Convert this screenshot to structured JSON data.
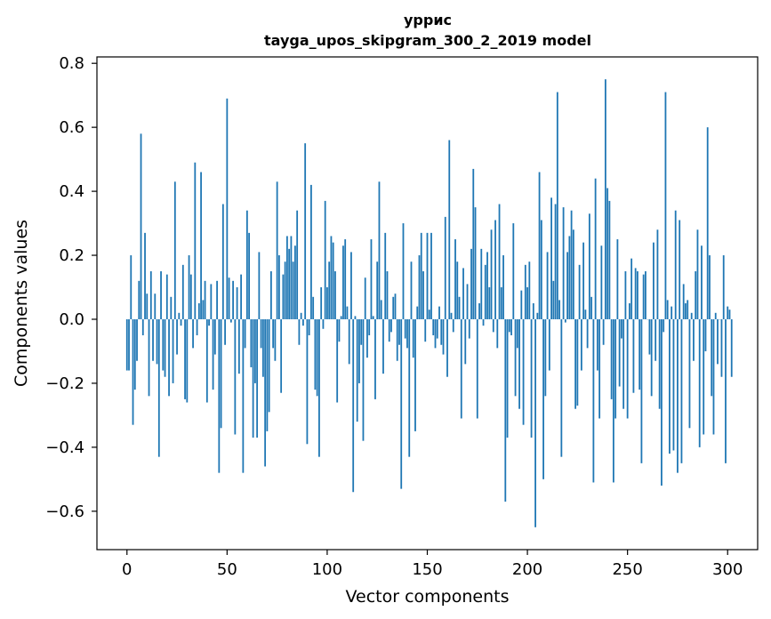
{
  "chart_data": {
    "type": "bar",
    "title": "уррис",
    "subtitle": "tayga_upos_skipgram_300_2_2019 model",
    "xlabel": "Vector components",
    "ylabel": "Components values",
    "xlim": [
      -15,
      315
    ],
    "ylim": [
      -0.72,
      0.82
    ],
    "x_ticks": [
      0,
      50,
      100,
      150,
      200,
      250,
      300
    ],
    "x_tick_labels": [
      "0",
      "50",
      "100",
      "150",
      "200",
      "250",
      "300"
    ],
    "y_ticks": [
      -0.6,
      -0.4,
      -0.2,
      0.0,
      0.2,
      0.4,
      0.6,
      0.8
    ],
    "y_tick_labels": [
      "−0.6",
      "−0.4",
      "−0.2",
      "0.0",
      "0.2",
      "0.4",
      "0.6",
      "0.8"
    ],
    "bar_color": "#1f77b4",
    "series": [
      {
        "name": "components",
        "values": [
          -0.16,
          -0.16,
          0.2,
          -0.33,
          -0.22,
          -0.13,
          0.12,
          0.58,
          -0.05,
          0.27,
          0.08,
          -0.24,
          0.15,
          -0.13,
          0.08,
          -0.14,
          -0.43,
          0.15,
          -0.16,
          -0.18,
          0.14,
          -0.24,
          0.07,
          -0.2,
          0.43,
          -0.11,
          0.02,
          -0.02,
          0.17,
          -0.25,
          -0.26,
          0.2,
          0.14,
          -0.09,
          0.49,
          -0.05,
          0.05,
          0.46,
          0.06,
          0.12,
          -0.26,
          -0.02,
          0.11,
          -0.22,
          -0.11,
          0.12,
          -0.48,
          -0.34,
          0.36,
          -0.08,
          0.69,
          0.13,
          -0.01,
          0.12,
          -0.36,
          0.1,
          -0.17,
          0.14,
          -0.48,
          -0.09,
          0.34,
          0.27,
          -0.15,
          -0.37,
          -0.2,
          -0.37,
          0.21,
          -0.09,
          -0.18,
          -0.46,
          -0.35,
          -0.29,
          0.15,
          -0.09,
          -0.13,
          0.43,
          0.2,
          -0.23,
          0.14,
          0.18,
          0.26,
          0.22,
          0.26,
          0.18,
          0.23,
          0.34,
          -0.08,
          0.02,
          -0.02,
          0.55,
          -0.39,
          -0.05,
          0.42,
          0.07,
          -0.22,
          -0.24,
          -0.43,
          0.1,
          -0.03,
          0.37,
          0.1,
          0.18,
          0.26,
          0.24,
          0.15,
          -0.26,
          -0.07,
          0.01,
          0.23,
          0.25,
          0.04,
          -0.14,
          0.21,
          -0.54,
          0.01,
          -0.32,
          -0.2,
          -0.08,
          -0.38,
          0.13,
          -0.12,
          -0.05,
          0.25,
          0.01,
          -0.25,
          0.18,
          0.43,
          0.06,
          -0.17,
          0.27,
          0.15,
          -0.07,
          -0.04,
          0.07,
          0.08,
          -0.13,
          -0.08,
          -0.53,
          0.3,
          -0.06,
          -0.09,
          -0.43,
          0.18,
          -0.12,
          -0.35,
          0.04,
          0.2,
          0.27,
          0.15,
          -0.07,
          0.27,
          0.03,
          0.27,
          -0.05,
          -0.09,
          -0.06,
          0.04,
          -0.08,
          -0.11,
          0.32,
          -0.18,
          0.56,
          0.02,
          -0.04,
          0.25,
          0.18,
          0.07,
          -0.31,
          0.16,
          -0.14,
          0.11,
          -0.06,
          0.22,
          0.47,
          0.35,
          -0.31,
          0.05,
          0.22,
          -0.02,
          0.17,
          0.21,
          0.1,
          0.28,
          -0.04,
          0.31,
          -0.09,
          0.36,
          0.1,
          0.2,
          -0.57,
          -0.37,
          -0.04,
          -0.05,
          0.3,
          -0.24,
          -0.09,
          -0.28,
          0.09,
          -0.33,
          0.17,
          0.1,
          0.18,
          -0.37,
          0.05,
          -0.65,
          0.02,
          0.46,
          0.31,
          -0.5,
          -0.24,
          0.21,
          -0.16,
          0.38,
          0.12,
          0.36,
          0.71,
          0.06,
          -0.43,
          0.35,
          -0.01,
          0.21,
          0.26,
          0.34,
          0.28,
          -0.28,
          -0.27,
          0.17,
          -0.16,
          0.24,
          0.03,
          -0.09,
          0.33,
          0.07,
          -0.51,
          0.44,
          -0.16,
          -0.31,
          0.23,
          -0.08,
          0.75,
          0.41,
          0.37,
          -0.25,
          -0.51,
          -0.31,
          0.25,
          -0.21,
          -0.06,
          -0.28,
          0.15,
          -0.31,
          0.05,
          0.19,
          -0.23,
          0.16,
          0.15,
          -0.22,
          -0.45,
          0.14,
          0.15,
          0.0,
          -0.11,
          -0.24,
          0.24,
          -0.13,
          0.28,
          -0.28,
          -0.52,
          -0.04,
          0.71,
          0.06,
          -0.42,
          0.04,
          -0.41,
          0.34,
          -0.48,
          0.31,
          -0.45,
          0.11,
          0.05,
          0.06,
          -0.34,
          0.02,
          -0.13,
          0.15,
          0.28,
          -0.4,
          0.23,
          -0.36,
          -0.1,
          0.6,
          0.2,
          -0.24,
          -0.36,
          0.02,
          -0.14,
          0.0,
          -0.18,
          0.2,
          -0.45,
          0.04,
          0.03,
          -0.18
        ]
      }
    ]
  }
}
